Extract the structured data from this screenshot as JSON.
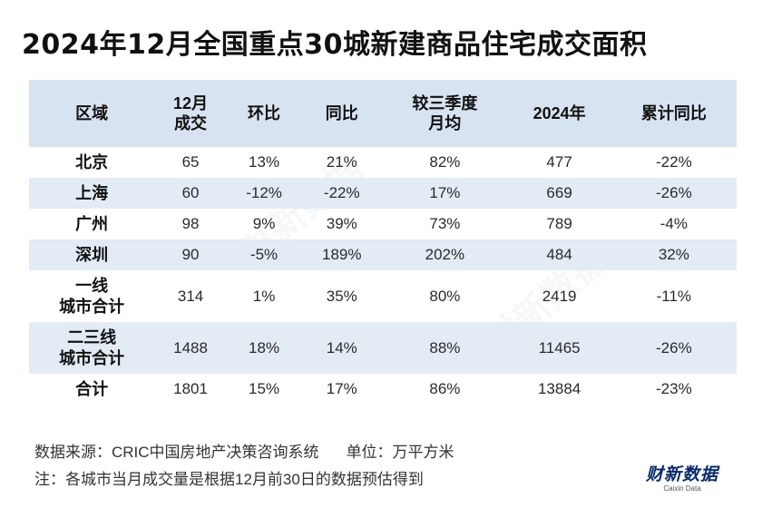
{
  "title": "2024年12月全国重点30城新建商品住宅成交面积",
  "table": {
    "headers": [
      [
        "区域"
      ],
      [
        "12月",
        "成交"
      ],
      [
        "环比"
      ],
      [
        "同比"
      ],
      [
        "较三季度",
        "月均"
      ],
      [
        "2024年"
      ],
      [
        "累计同比"
      ]
    ],
    "rows": [
      {
        "region": [
          "北京"
        ],
        "values": [
          "65",
          "13%",
          "21%",
          "82%",
          "477",
          "-22%"
        ]
      },
      {
        "region": [
          "上海"
        ],
        "values": [
          "60",
          "-12%",
          "-22%",
          "17%",
          "669",
          "-26%"
        ]
      },
      {
        "region": [
          "广州"
        ],
        "values": [
          "98",
          "9%",
          "39%",
          "73%",
          "789",
          "-4%"
        ]
      },
      {
        "region": [
          "深圳"
        ],
        "values": [
          "90",
          "-5%",
          "189%",
          "202%",
          "484",
          "32%"
        ]
      },
      {
        "region": [
          "一线",
          "城市合计"
        ],
        "values": [
          "314",
          "1%",
          "35%",
          "80%",
          "2419",
          "-11%"
        ]
      },
      {
        "region": [
          "二三线",
          "城市合计"
        ],
        "values": [
          "1488",
          "18%",
          "14%",
          "88%",
          "11465",
          "-26%"
        ]
      },
      {
        "region": [
          "合计"
        ],
        "values": [
          "1801",
          "15%",
          "17%",
          "86%",
          "13884",
          "-23%"
        ]
      }
    ]
  },
  "footer": {
    "source": "数据来源：CRIC中国房地产决策咨询系统",
    "unit": "单位：万平方米",
    "note": "注：各城市当月成交量是根据12月前30日的数据预估得到"
  },
  "logo": {
    "mark": "财新数据",
    "sub": "Caixin Data"
  },
  "colors": {
    "header_bg": "#d8e3f2",
    "stripe_bg": "#e3ebf5",
    "logo": "#0a2a6b"
  }
}
